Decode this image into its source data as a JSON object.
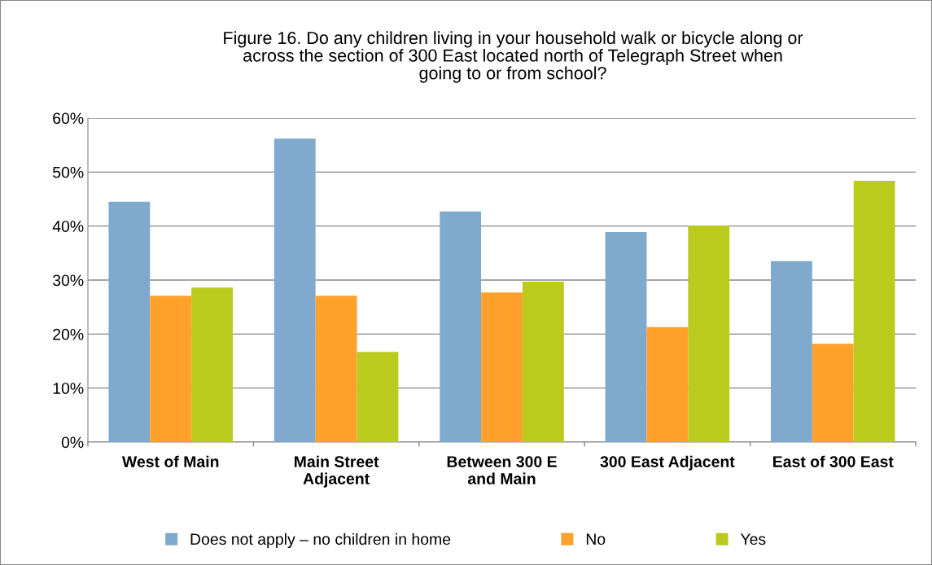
{
  "chart_data": {
    "type": "bar",
    "title": "Figure 16. Do any children living in your household walk or bicycle along or\nacross the section of 300 East located north of Telegraph Street when\ngoing to or from school?",
    "categories": [
      "West of Main",
      "Main Street\nAdjacent",
      "Between 300 E\nand Main",
      "300 East Adjacent",
      "East of 300 East"
    ],
    "series": [
      {
        "name": "Does not apply – no children in home",
        "color": "#7faacd",
        "values": [
          44.5,
          56.2,
          42.7,
          38.9,
          33.5
        ]
      },
      {
        "name": "No",
        "color": "#ffa12b",
        "values": [
          27.1,
          27.1,
          27.7,
          21.3,
          18.2
        ]
      },
      {
        "name": "Yes",
        "color": "#bbcb1d",
        "values": [
          28.6,
          16.7,
          29.7,
          40.1,
          48.4
        ]
      }
    ],
    "ylim": [
      0,
      60
    ],
    "yticks": [
      {
        "value": 0,
        "label": "0%"
      },
      {
        "value": 10,
        "label": "10%"
      },
      {
        "value": 20,
        "label": "20%"
      },
      {
        "value": 30,
        "label": "30%"
      },
      {
        "value": 40,
        "label": "40%"
      },
      {
        "value": 50,
        "label": "50%"
      },
      {
        "value": 60,
        "label": "60%"
      }
    ],
    "grid": "y",
    "legend": "bottom"
  }
}
